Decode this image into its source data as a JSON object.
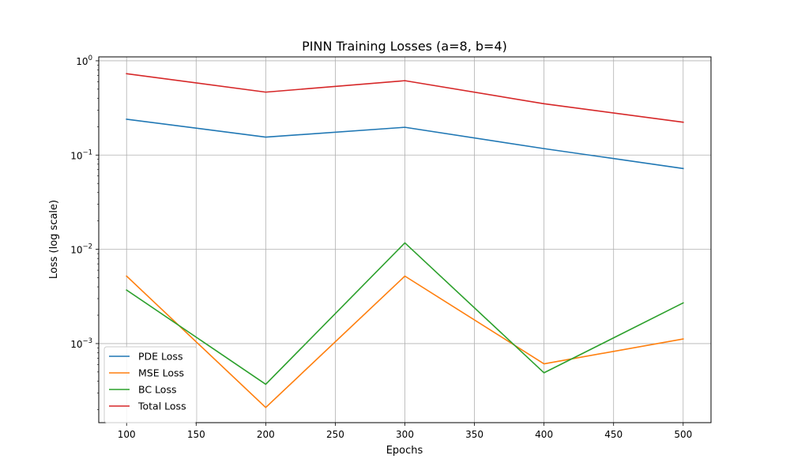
{
  "chart_data": {
    "type": "line",
    "title": "PINN Training Losses (a=8, b=4)",
    "xlabel": "Epochs",
    "ylabel": "Loss (log scale)",
    "yscale": "log",
    "xlim": [
      80,
      520
    ],
    "ylim": [
      0.000145,
      1.1
    ],
    "x": [
      100,
      200,
      300,
      400,
      500
    ],
    "xticks": [
      100,
      150,
      200,
      250,
      300,
      350,
      400,
      450,
      500
    ],
    "xtick_labels": [
      "100",
      "150",
      "200",
      "250",
      "300",
      "350",
      "400",
      "450",
      "500"
    ],
    "yticks": [
      {
        "value": 1,
        "base": "10",
        "exp": "0"
      },
      {
        "value": 0.1,
        "base": "10",
        "exp": "−1"
      },
      {
        "value": 0.01,
        "base": "10",
        "exp": "−2"
      },
      {
        "value": 0.001,
        "base": "10",
        "exp": "−3"
      }
    ],
    "grid": true,
    "legend_position": "lower-left",
    "series": [
      {
        "name": "PDE Loss",
        "color": "#1f77b4",
        "values": [
          0.24,
          0.155,
          0.197,
          0.117,
          0.072
        ]
      },
      {
        "name": "MSE Loss",
        "color": "#ff7f0e",
        "values": [
          0.0052,
          0.00021,
          0.0052,
          0.00061,
          0.00112
        ]
      },
      {
        "name": "BC Loss",
        "color": "#2ca02c",
        "values": [
          0.0037,
          0.00037,
          0.0117,
          0.00049,
          0.0027
        ]
      },
      {
        "name": "Total Loss",
        "color": "#d62728",
        "values": [
          0.73,
          0.465,
          0.615,
          0.35,
          0.223
        ]
      }
    ]
  }
}
